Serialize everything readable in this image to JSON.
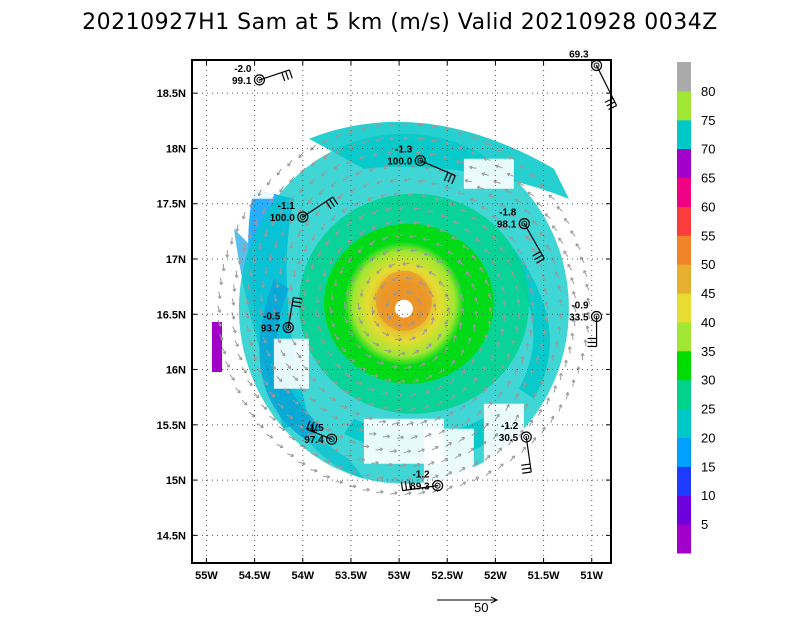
{
  "title": "20210927H1 Sam at 5 km (m/s) Valid 20210928 0034Z",
  "map": {
    "lat_labels": [
      "18.5N",
      "18N",
      "17.5N",
      "17N",
      "16.5N",
      "16N",
      "15.5N",
      "15N",
      "14.5N"
    ],
    "lon_labels": [
      "55W",
      "54.5W",
      "54W",
      "53.5W",
      "53W",
      "52.5W",
      "52W",
      "51.5W",
      "51W"
    ],
    "lat_values": [
      18.5,
      18,
      17.5,
      17,
      16.5,
      16,
      15.5,
      15,
      14.5
    ],
    "lon_values": [
      -55,
      -54.5,
      -54,
      -53.5,
      -53,
      -52.5,
      -52,
      -51.5,
      -51
    ],
    "lon_range": [
      -55.15,
      -50.8
    ],
    "lat_range": [
      14.25,
      18.8
    ],
    "storm_center": {
      "lon": -52.95,
      "lat": 16.55
    }
  },
  "colorbar": {
    "labels": [
      "5",
      "10",
      "15",
      "20",
      "25",
      "30",
      "35",
      "40",
      "45",
      "50",
      "55",
      "60",
      "65",
      "70",
      "75",
      "80"
    ],
    "colors": [
      "#a000c8",
      "#6e00dc",
      "#1e3cff",
      "#00a0ff",
      "#00c8c8",
      "#00d28c",
      "#00dc00",
      "#a0e632",
      "#e6dc32",
      "#e6af2d",
      "#f08228",
      "#fa3c3c",
      "#f00082",
      "#a000c8",
      "#00c8c8",
      "#a0e632",
      "#aaaaaa"
    ]
  },
  "stations": [
    {
      "top": "-2.0",
      "bottom": "99.1",
      "lon": -54.45,
      "lat": 18.62
    },
    {
      "top": "69.3",
      "bottom": "",
      "lon": -50.95,
      "lat": 18.75
    },
    {
      "top": "-1.3",
      "bottom": "100.0",
      "lon": -52.78,
      "lat": 17.89
    },
    {
      "top": "-1.1",
      "bottom": "100.0",
      "lon": -54.0,
      "lat": 17.38
    },
    {
      "top": "-1.8",
      "bottom": "98.1",
      "lon": -51.7,
      "lat": 17.32
    },
    {
      "top": "-0.5",
      "bottom": "93.7",
      "lon": -54.15,
      "lat": 16.38
    },
    {
      "top": "-0.9",
      "bottom": "33.5",
      "lon": -50.95,
      "lat": 16.48
    },
    {
      "top": "-1.5",
      "bottom": "97.4",
      "lon": -53.7,
      "lat": 15.37
    },
    {
      "top": "-1.2",
      "bottom": "30.5",
      "lon": -51.68,
      "lat": 15.39
    },
    {
      "top": "-1.2",
      "bottom": "89.3",
      "lon": -52.6,
      "lat": 14.95
    }
  ],
  "scale": {
    "label": "50"
  }
}
